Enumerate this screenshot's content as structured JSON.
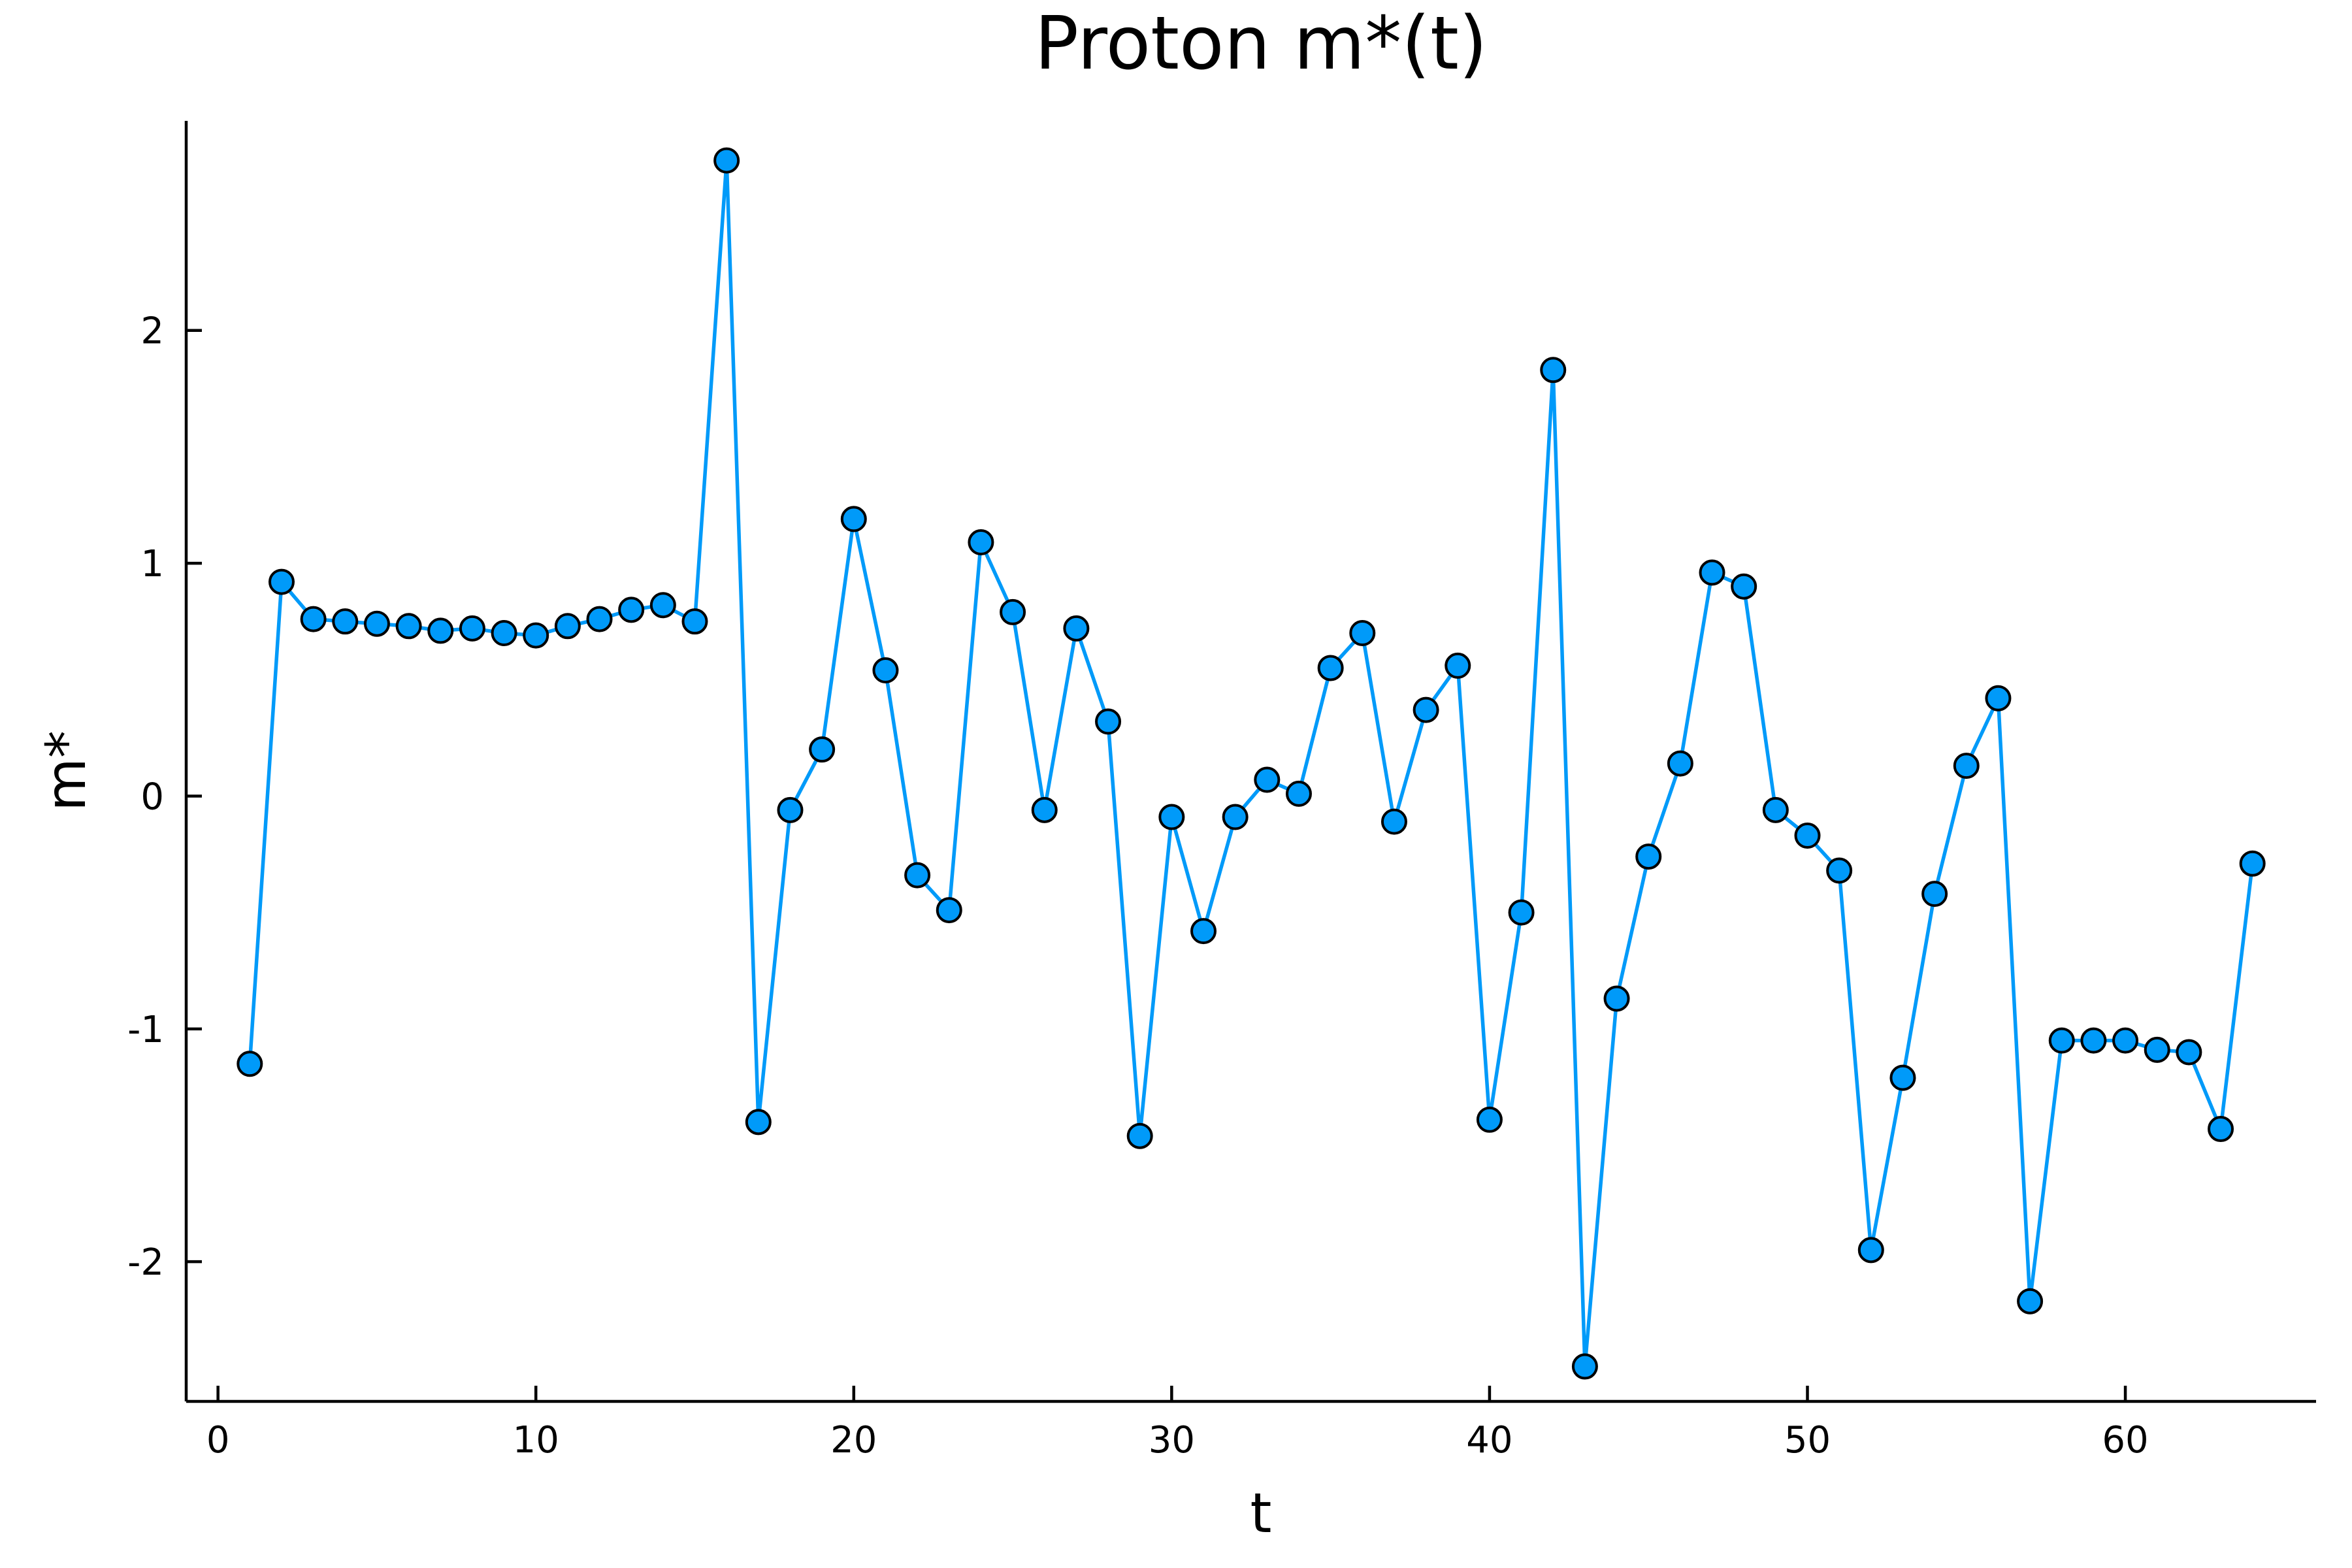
{
  "chart_data": {
    "type": "line",
    "title": "Proton m*(t)",
    "xlabel": "t",
    "ylabel": "m*",
    "xlim": [
      -1,
      66
    ],
    "ylim": [
      -2.6,
      2.9
    ],
    "xticks": [
      0,
      10,
      20,
      30,
      40,
      50,
      60
    ],
    "xtick_labels": [
      "0",
      "10",
      "20",
      "30",
      "40",
      "50",
      "60"
    ],
    "yticks": [
      -2,
      -1,
      0,
      1,
      2
    ],
    "ytick_labels": [
      "-2",
      "-1",
      "0",
      "1",
      "2"
    ],
    "grid": false,
    "legend": false,
    "series": [
      {
        "color": "#009af9",
        "marker": "circle",
        "x": [
          1,
          2,
          3,
          4,
          5,
          6,
          7,
          8,
          9,
          10,
          11,
          12,
          13,
          14,
          15,
          16,
          17,
          18,
          19,
          20,
          21,
          22,
          23,
          24,
          25,
          26,
          27,
          28,
          29,
          30,
          31,
          32,
          33,
          34,
          35,
          36,
          37,
          38,
          39,
          40,
          41,
          42,
          43,
          44,
          45,
          46,
          47,
          48,
          49,
          50,
          51,
          52,
          53,
          54,
          55,
          56,
          57,
          58,
          59,
          60,
          61,
          62,
          63,
          64
        ],
        "y": [
          -1.15,
          0.92,
          0.76,
          0.75,
          0.74,
          0.73,
          0.71,
          0.72,
          0.7,
          0.69,
          0.73,
          0.76,
          0.8,
          0.82,
          0.75,
          2.73,
          -1.4,
          -0.06,
          0.2,
          1.19,
          0.54,
          -0.34,
          -0.49,
          1.09,
          0.79,
          -0.06,
          0.72,
          0.32,
          -1.46,
          -0.09,
          -0.58,
          -0.09,
          0.07,
          0.01,
          0.55,
          0.7,
          -0.11,
          0.37,
          0.56,
          -1.39,
          -0.5,
          1.83,
          -2.45,
          -0.87,
          -0.26,
          0.14,
          0.96,
          0.9,
          -0.06,
          -0.17,
          -0.32,
          -1.95,
          -1.21,
          -0.42,
          0.13,
          0.42,
          -2.17,
          -1.05,
          -1.05,
          -1.05,
          -1.09,
          -1.1,
          -1.43,
          -0.29
        ]
      }
    ]
  }
}
